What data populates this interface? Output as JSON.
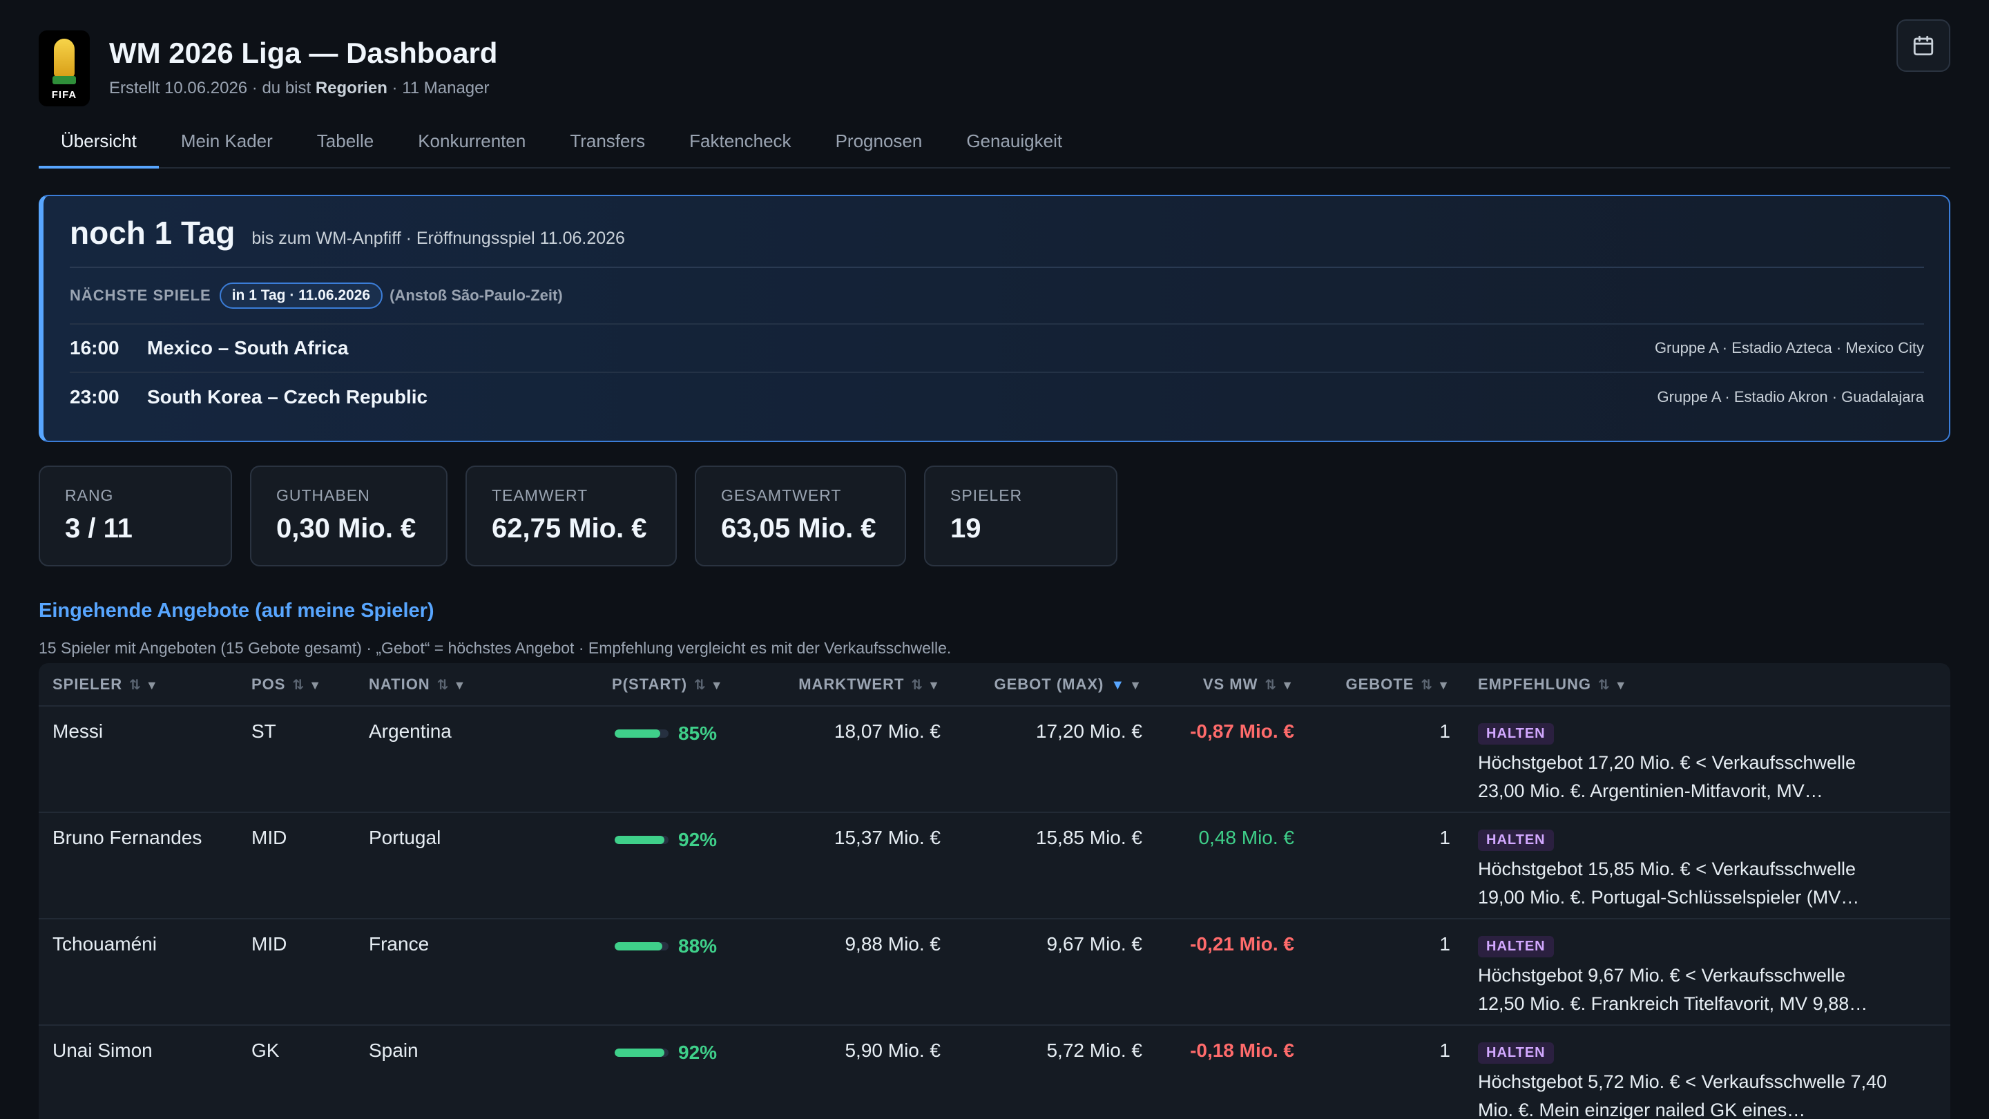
{
  "header": {
    "title": "WM 2026 Liga — Dashboard",
    "subtitle_prefix": "Erstellt 10.06.2026 · du bist",
    "user": "Regorien",
    "subtitle_suffix": "· 11 Manager",
    "logo_text": "FIFA"
  },
  "tabs": [
    "Übersicht",
    "Mein Kader",
    "Tabelle",
    "Konkurrenten",
    "Transfers",
    "Faktencheck",
    "Prognosen",
    "Genauigkeit"
  ],
  "countdown": {
    "big": "noch 1 Tag",
    "small": "bis zum WM-Anpfiff · Eröffnungsspiel 11.06.2026",
    "next_label": "NÄCHSTE SPIELE",
    "next_pill": "in 1 Tag · 11.06.2026",
    "next_note": "(Anstoß São-Paulo-Zeit)",
    "matches": [
      {
        "time": "16:00",
        "teams": "Mexico – South Africa",
        "venue": "Gruppe A · Estadio Azteca · Mexico City"
      },
      {
        "time": "23:00",
        "teams": "South Korea – Czech Republic",
        "venue": "Gruppe A · Estadio Akron · Guadalajara"
      }
    ]
  },
  "stats": [
    {
      "label": "RANG",
      "value": "3 / 11"
    },
    {
      "label": "GUTHABEN",
      "value": "0,30 Mio. €"
    },
    {
      "label": "TEAMWERT",
      "value": "62,75 Mio. €"
    },
    {
      "label": "GESAMTWERT",
      "value": "63,05 Mio. €"
    },
    {
      "label": "SPIELER",
      "value": "19"
    }
  ],
  "offers": {
    "title": "Eingehende Angebote (auf meine Spieler)",
    "desc": "15 Spieler mit Angeboten (15 Gebote gesamt) · „Gebot“ = höchstes Angebot · Empfehlung vergleicht es mit der Verkaufsschwelle.",
    "columns": [
      "SPIELER",
      "POS",
      "NATION",
      "P(START)",
      "MARKTWERT",
      "GEBOT (MAX)",
      "VS MW",
      "GEBOTE",
      "EMPFEHLUNG"
    ],
    "rows": [
      {
        "name": "Messi",
        "pos": "ST",
        "nation": "Argentina",
        "pstart": 85,
        "pstart_label": "85%",
        "mw": "18,07 Mio. €",
        "gebot": "17,20 Mio. €",
        "vsmw": "-0,87 Mio. €",
        "vsmw_sign": "neg",
        "count": "1",
        "rec": "HALTEN",
        "rec_text": "Höchstgebot 17,20 Mio. € < Verkaufsschwelle 23,00 Mio. €. Argentinien-Mitfavorit, MV…"
      },
      {
        "name": "Bruno Fernandes",
        "pos": "MID",
        "nation": "Portugal",
        "pstart": 92,
        "pstart_label": "92%",
        "mw": "15,37 Mio. €",
        "gebot": "15,85 Mio. €",
        "vsmw": "0,48 Mio. €",
        "vsmw_sign": "pos",
        "count": "1",
        "rec": "HALTEN",
        "rec_text": "Höchstgebot 15,85 Mio. € < Verkaufsschwelle 19,00 Mio. €. Portugal-Schlüsselspieler (MV…"
      },
      {
        "name": "Tchouaméni",
        "pos": "MID",
        "nation": "France",
        "pstart": 88,
        "pstart_label": "88%",
        "mw": "9,88 Mio. €",
        "gebot": "9,67 Mio. €",
        "vsmw": "-0,21 Mio. €",
        "vsmw_sign": "neg",
        "count": "1",
        "rec": "HALTEN",
        "rec_text": "Höchstgebot 9,67 Mio. € < Verkaufsschwelle 12,50 Mio. €. Frankreich Titelfavorit, MV 9,88…"
      },
      {
        "name": "Unai Simon",
        "pos": "GK",
        "nation": "Spain",
        "pstart": 92,
        "pstart_label": "92%",
        "mw": "5,90 Mio. €",
        "gebot": "5,72 Mio. €",
        "vsmw": "-0,18 Mio. €",
        "vsmw_sign": "neg",
        "count": "1",
        "rec": "HALTEN",
        "rec_text": "Höchstgebot 5,72 Mio. € < Verkaufsschwelle 7,40 Mio. €. Mein einziger nailed GK eines…"
      }
    ]
  }
}
